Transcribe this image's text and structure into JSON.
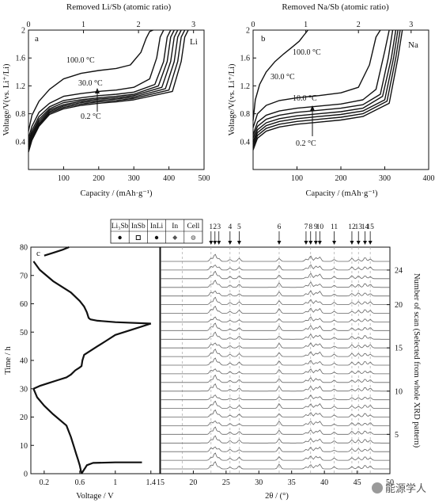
{
  "chart_data": [
    {
      "panel": "a",
      "type": "line",
      "top_axis_label": "Removed Li/Sb (atomic ratio)",
      "top_ticks": [
        "0",
        "1",
        "2",
        "3"
      ],
      "top_tick_values": [
        0,
        1,
        2,
        3
      ],
      "xlabel": "Capacity / (mAh·g⁻¹)",
      "ylabel": "Voltage/V(vs. Li⁺/Li)",
      "xlim": [
        0,
        500
      ],
      "ylim": [
        0,
        2.0
      ],
      "xticks": [
        100,
        200,
        300,
        400,
        500
      ],
      "yticks": [
        0.4,
        0.8,
        1.2,
        1.6,
        2.0
      ],
      "element_label": "Li",
      "annotations": [
        "100.0 °C",
        "30.0 °C",
        "0.2 °C"
      ],
      "series": [
        {
          "x": [
            0,
            10,
            30,
            60,
            100,
            150,
            200,
            250,
            290,
            320,
            335,
            345,
            355
          ],
          "y": [
            0.55,
            0.78,
            0.98,
            1.15,
            1.3,
            1.38,
            1.42,
            1.45,
            1.5,
            1.68,
            1.88,
            1.98,
            2.0
          ]
        },
        {
          "x": [
            0,
            10,
            30,
            60,
            100,
            150,
            200,
            250,
            300,
            345,
            365,
            375,
            385
          ],
          "y": [
            0.45,
            0.62,
            0.82,
            0.95,
            1.05,
            1.09,
            1.12,
            1.14,
            1.18,
            1.3,
            1.6,
            1.9,
            2.0
          ]
        },
        {
          "x": [
            0,
            10,
            30,
            60,
            100,
            150,
            200,
            250,
            300,
            360,
            385,
            395,
            405
          ],
          "y": [
            0.4,
            0.56,
            0.76,
            0.9,
            0.99,
            1.03,
            1.06,
            1.08,
            1.11,
            1.22,
            1.55,
            1.9,
            2.0
          ]
        },
        {
          "x": [
            0,
            10,
            30,
            60,
            100,
            150,
            200,
            250,
            300,
            370,
            395,
            405,
            415
          ],
          "y": [
            0.36,
            0.52,
            0.72,
            0.87,
            0.96,
            1.0,
            1.03,
            1.05,
            1.08,
            1.2,
            1.55,
            1.9,
            2.0
          ]
        },
        {
          "x": [
            0,
            10,
            30,
            60,
            100,
            150,
            200,
            250,
            300,
            380,
            405,
            415,
            425
          ],
          "y": [
            0.33,
            0.49,
            0.69,
            0.85,
            0.93,
            0.98,
            1.01,
            1.03,
            1.06,
            1.18,
            1.55,
            1.9,
            2.0
          ]
        },
        {
          "x": [
            0,
            10,
            30,
            60,
            100,
            150,
            200,
            250,
            300,
            390,
            415,
            425,
            435
          ],
          "y": [
            0.3,
            0.46,
            0.66,
            0.83,
            0.91,
            0.96,
            0.99,
            1.01,
            1.04,
            1.16,
            1.55,
            1.9,
            2.0
          ]
        },
        {
          "x": [
            0,
            10,
            30,
            60,
            100,
            150,
            200,
            250,
            300,
            400,
            425,
            435,
            445
          ],
          "y": [
            0.28,
            0.44,
            0.64,
            0.81,
            0.89,
            0.94,
            0.97,
            0.99,
            1.02,
            1.14,
            1.55,
            1.9,
            2.0
          ]
        },
        {
          "x": [
            0,
            10,
            30,
            60,
            100,
            150,
            200,
            250,
            300,
            410,
            435,
            445,
            455
          ],
          "y": [
            0.25,
            0.42,
            0.62,
            0.79,
            0.87,
            0.92,
            0.95,
            0.97,
            1.0,
            1.12,
            1.55,
            1.9,
            2.0
          ]
        }
      ]
    },
    {
      "panel": "b",
      "type": "line",
      "top_axis_label": "Removed Na/Sb (atomic ratio)",
      "top_ticks": [
        "0",
        "1",
        "2",
        "3"
      ],
      "top_tick_values": [
        0,
        1,
        2,
        3
      ],
      "xlabel": "Capacity / (mAh·g⁻¹)",
      "ylabel": "Voltage/V(vs. Li⁺/Li)",
      "xlim": [
        0,
        400
      ],
      "ylim": [
        0,
        2.0
      ],
      "xticks": [
        100,
        200,
        300,
        400
      ],
      "yticks": [
        0.4,
        0.8,
        1.2,
        1.6,
        2.0
      ],
      "element_label": "Na",
      "annotations": [
        "100.0 °C",
        "30.0 °C",
        "10.0 °C",
        "0.2 °C"
      ],
      "series": [
        {
          "x": [
            0,
            5,
            15,
            30,
            50,
            70,
            90,
            105,
            115,
            125
          ],
          "y": [
            0.7,
            1.0,
            1.22,
            1.4,
            1.55,
            1.66,
            1.76,
            1.84,
            1.92,
            2.0
          ]
        },
        {
          "x": [
            0,
            10,
            30,
            60,
            100,
            150,
            200,
            240,
            265,
            280,
            290
          ],
          "y": [
            0.6,
            0.8,
            0.92,
            0.99,
            1.03,
            1.06,
            1.1,
            1.18,
            1.5,
            1.9,
            2.0
          ]
        },
        {
          "x": [
            0,
            10,
            30,
            60,
            100,
            150,
            200,
            250,
            280,
            300,
            310
          ],
          "y": [
            0.5,
            0.68,
            0.78,
            0.84,
            0.88,
            0.91,
            0.94,
            1.0,
            1.15,
            1.7,
            2.0
          ]
        },
        {
          "x": [
            0,
            10,
            30,
            60,
            100,
            150,
            200,
            250,
            290,
            308,
            318
          ],
          "y": [
            0.45,
            0.62,
            0.72,
            0.78,
            0.82,
            0.85,
            0.88,
            0.93,
            1.08,
            1.6,
            2.0
          ]
        },
        {
          "x": [
            0,
            10,
            30,
            60,
            100,
            150,
            200,
            250,
            295,
            315,
            325
          ],
          "y": [
            0.4,
            0.57,
            0.67,
            0.73,
            0.77,
            0.8,
            0.83,
            0.88,
            1.05,
            1.6,
            2.0
          ]
        },
        {
          "x": [
            0,
            10,
            30,
            60,
            100,
            150,
            200,
            250,
            300,
            320,
            330
          ],
          "y": [
            0.36,
            0.53,
            0.63,
            0.69,
            0.73,
            0.76,
            0.79,
            0.84,
            1.0,
            1.6,
            2.0
          ]
        },
        {
          "x": [
            0,
            10,
            30,
            60,
            100,
            150,
            200,
            250,
            305,
            325,
            335
          ],
          "y": [
            0.32,
            0.49,
            0.59,
            0.65,
            0.69,
            0.72,
            0.75,
            0.8,
            0.98,
            1.6,
            2.0
          ]
        },
        {
          "x": [
            0,
            10,
            30,
            60,
            100,
            150,
            200,
            250,
            310,
            330,
            340
          ],
          "y": [
            0.28,
            0.45,
            0.55,
            0.61,
            0.65,
            0.68,
            0.71,
            0.76,
            0.95,
            1.6,
            2.0
          ]
        }
      ]
    },
    {
      "panel": "c-voltage",
      "type": "line",
      "xlabel": "Voltage / V",
      "ylabel": "Time / h",
      "xlim": [
        0.05,
        1.5
      ],
      "ylim": [
        0,
        80
      ],
      "xticks": [
        0.2,
        0.6,
        1.0,
        1.4
      ],
      "yticks": [
        0,
        10,
        20,
        30,
        40,
        50,
        60,
        70,
        80
      ],
      "series": [
        {
          "x": [
            0.62,
            0.63,
            0.64,
            0.66,
            0.68,
            0.75,
            1.0,
            1.2,
            1.3
          ],
          "y": [
            0,
            0.5,
            1,
            2,
            3,
            3.8,
            4.0,
            4.0,
            4.0
          ]
        },
        {
          "x": [
            0.62,
            0.6,
            0.58,
            0.56,
            0.54,
            0.5,
            0.45,
            0.3,
            0.2,
            0.12,
            0.08
          ],
          "y": [
            0,
            3,
            5,
            7,
            9,
            13,
            17,
            21,
            24,
            27,
            30
          ]
        },
        {
          "x": [
            0.08,
            0.15,
            0.25,
            0.35,
            0.45,
            0.5,
            0.55,
            0.6,
            0.62,
            0.63,
            0.65,
            0.8,
            0.9,
            1.0,
            1.2,
            1.4
          ],
          "y": [
            30,
            31,
            32,
            33,
            34,
            35,
            36.5,
            37.5,
            38,
            40,
            42,
            45,
            47,
            49,
            51,
            53
          ]
        },
        {
          "x": [
            1.4,
            1.0,
            0.8,
            0.72,
            0.7,
            0.68,
            0.65,
            0.6,
            0.5,
            0.3,
            0.15,
            0.08
          ],
          "y": [
            53,
            53.5,
            54,
            54.5,
            55,
            57,
            59,
            61,
            64,
            68,
            72,
            75
          ]
        },
        {
          "x": [
            0.2,
            0.3,
            0.4,
            0.48
          ],
          "y": [
            77,
            78,
            79,
            80
          ]
        }
      ]
    },
    {
      "panel": "c-xrd",
      "type": "line",
      "xlabel": "2θ / (°)",
      "ylabel": "Number of scan (Selected from whole XRD pattern)",
      "xlim": [
        15,
        50
      ],
      "xticks": [
        15,
        20,
        25,
        30,
        35,
        40,
        45,
        50
      ],
      "yticks_right": [
        5,
        10,
        15,
        20,
        24
      ],
      "scan_count": 25,
      "legend": [
        "Li₃Sb",
        "InSb",
        "InLi",
        "In",
        "Cell"
      ],
      "peak_labels": [
        "1",
        "2",
        "3",
        "4",
        "5",
        "6",
        "7",
        "8",
        "9",
        "10",
        "11",
        "12",
        "13",
        "14",
        "15"
      ],
      "peak_positions": [
        22.7,
        23.3,
        23.9,
        25.6,
        27.0,
        33.1,
        37.2,
        37.9,
        38.7,
        39.3,
        41.5,
        44.2,
        45.2,
        46.2,
        47.0
      ],
      "dashed_lines": [
        18.3,
        22.7,
        25.6,
        27.0,
        33.1,
        37.9,
        41.5,
        44.2,
        45.2,
        47.0
      ]
    }
  ],
  "panel_labels": {
    "a": "a",
    "b": "b",
    "c": "c"
  },
  "colors": {
    "line": "#111111",
    "xrd_trace": "#666666",
    "dashed": "#aaaaaa"
  },
  "watermark": "能源学人"
}
